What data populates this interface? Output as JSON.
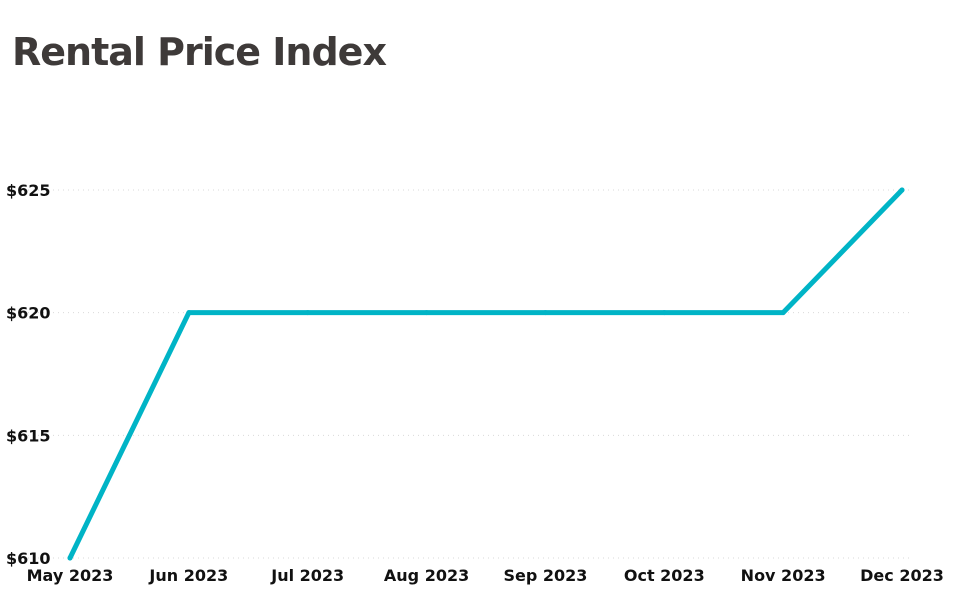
{
  "chart_data": {
    "type": "line",
    "title": "Rental Price Index",
    "xlabel": "",
    "ylabel": "",
    "categories": [
      "May 2023",
      "Jun 2023",
      "Jul 2023",
      "Aug 2023",
      "Sep 2023",
      "Oct 2023",
      "Nov 2023",
      "Dec 2023"
    ],
    "series": [
      {
        "values": [
          610,
          620,
          620,
          620,
          620,
          620,
          620,
          625
        ]
      }
    ],
    "ylim": [
      610,
      625
    ],
    "yticks": [
      610,
      615,
      620,
      625
    ],
    "ytick_labels": [
      "$610",
      "$615",
      "$620",
      "$625"
    ],
    "grid": true,
    "line_color": "#00b4c6",
    "grid_color": "#d9d9d9"
  }
}
